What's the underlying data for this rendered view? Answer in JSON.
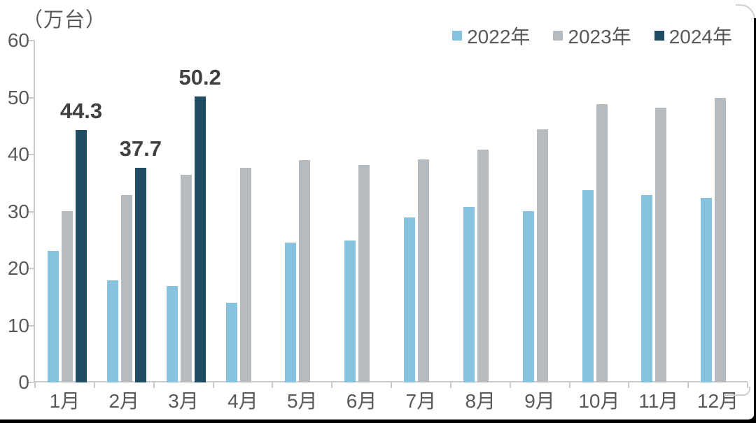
{
  "chart_data": {
    "type": "bar",
    "title": "",
    "unit_label": "（万台）",
    "xlabel": "",
    "ylabel": "万台",
    "categories": [
      "1月",
      "2月",
      "3月",
      "4月",
      "5月",
      "6月",
      "7月",
      "8月",
      "9月",
      "10月",
      "11月",
      "12月"
    ],
    "series": [
      {
        "name": "2022年",
        "color": "#87C3DE",
        "values": [
          23.1,
          17.9,
          16.9,
          14.0,
          24.6,
          24.9,
          29.0,
          30.8,
          30.1,
          33.7,
          32.9,
          32.4
        ]
      },
      {
        "name": "2023年",
        "color": "#B5BBBF",
        "values": [
          30.1,
          32.9,
          36.5,
          37.7,
          39.0,
          38.2,
          39.2,
          40.8,
          44.4,
          48.8,
          48.2,
          49.9
        ]
      },
      {
        "name": "2024年",
        "color": "#204D63",
        "values": [
          44.3,
          37.7,
          50.2,
          null,
          null,
          null,
          null,
          null,
          null,
          null,
          null,
          null
        ]
      }
    ],
    "data_labels": [
      {
        "series": "2024年",
        "category": "1月",
        "text": "44.3"
      },
      {
        "series": "2024年",
        "category": "2月",
        "text": "37.7"
      },
      {
        "series": "2024年",
        "category": "3月",
        "text": "50.2"
      }
    ],
    "ylim": [
      0,
      60
    ],
    "yticks": [
      0,
      10,
      20,
      30,
      40,
      50,
      60
    ],
    "grid": false,
    "legend_position": "top-right",
    "colors": {
      "axis": "#c9cccf",
      "axis_text": "#595959",
      "data_label_text": "#404040",
      "background": "#ffffff",
      "frame": "#000000"
    }
  }
}
